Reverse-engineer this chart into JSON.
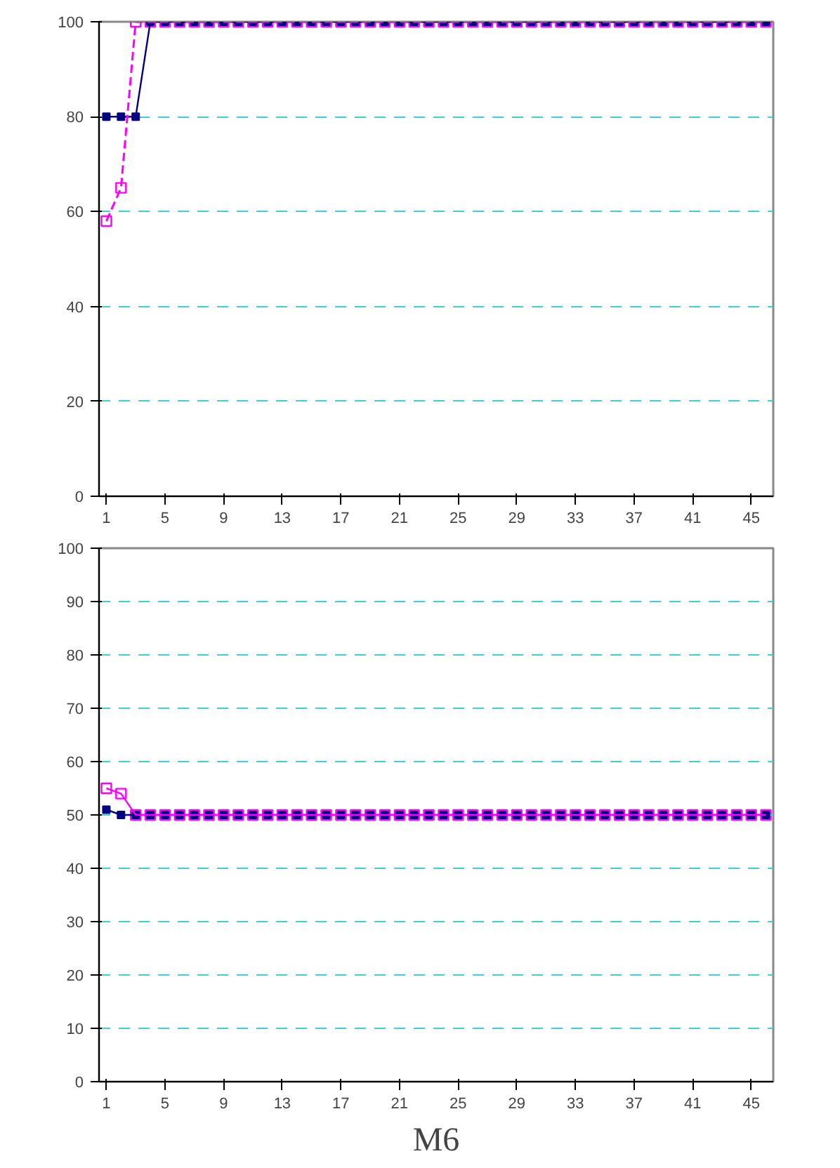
{
  "chart_data": [
    {
      "type": "line",
      "x": [
        1,
        2,
        3,
        4,
        5,
        6,
        7,
        8,
        9,
        10,
        11,
        12,
        13,
        14,
        15,
        16,
        17,
        18,
        19,
        20,
        21,
        22,
        23,
        24,
        25,
        26,
        27,
        28,
        29,
        30,
        31,
        32,
        33,
        34,
        35,
        36,
        37,
        38,
        39,
        40,
        41,
        42,
        43,
        44,
        45,
        46
      ],
      "xlim": [
        0.5,
        46.5
      ],
      "xticks": [
        1,
        5,
        9,
        13,
        17,
        21,
        25,
        29,
        33,
        37,
        41,
        45
      ],
      "ylim": [
        0,
        100
      ],
      "yticks": [
        0,
        20,
        40,
        60,
        80,
        100
      ],
      "grid": "y",
      "marker": "square",
      "series": [
        {
          "color": "#000080",
          "line_style": "solid",
          "values": [
            80,
            80,
            80,
            100,
            100,
            100,
            100,
            100,
            100,
            100,
            100,
            100,
            100,
            100,
            100,
            100,
            100,
            100,
            100,
            100,
            100,
            100,
            100,
            100,
            100,
            100,
            100,
            100,
            100,
            100,
            100,
            100,
            100,
            100,
            100,
            100,
            100,
            100,
            100,
            100,
            100,
            100,
            100,
            100,
            100,
            100
          ]
        },
        {
          "color": "#ff00ff",
          "line_style": "dashed",
          "values": [
            58,
            65,
            100,
            100,
            100,
            100,
            100,
            100,
            100,
            100,
            100,
            100,
            100,
            100,
            100,
            100,
            100,
            100,
            100,
            100,
            100,
            100,
            100,
            100,
            100,
            100,
            100,
            100,
            100,
            100,
            100,
            100,
            100,
            100,
            100,
            100,
            100,
            100,
            100,
            100,
            100,
            100,
            100,
            100,
            100,
            100
          ]
        }
      ]
    },
    {
      "type": "line",
      "title": "M6",
      "x": [
        1,
        2,
        3,
        4,
        5,
        6,
        7,
        8,
        9,
        10,
        11,
        12,
        13,
        14,
        15,
        16,
        17,
        18,
        19,
        20,
        21,
        22,
        23,
        24,
        25,
        26,
        27,
        28,
        29,
        30,
        31,
        32,
        33,
        34,
        35,
        36,
        37,
        38,
        39,
        40,
        41,
        42,
        43,
        44,
        45,
        46
      ],
      "xlim": [
        0.5,
        46.5
      ],
      "xticks": [
        1,
        5,
        9,
        13,
        17,
        21,
        25,
        29,
        33,
        37,
        41,
        45
      ],
      "ylim": [
        0,
        100
      ],
      "yticks": [
        0,
        10,
        20,
        30,
        40,
        50,
        60,
        70,
        80,
        90,
        100
      ],
      "grid": "y",
      "marker": "square",
      "series": [
        {
          "color": "#000080",
          "line_style": "solid",
          "values": [
            51,
            50,
            50,
            50,
            50,
            50,
            50,
            50,
            50,
            50,
            50,
            50,
            50,
            50,
            50,
            50,
            50,
            50,
            50,
            50,
            50,
            50,
            50,
            50,
            50,
            50,
            50,
            50,
            50,
            50,
            50,
            50,
            50,
            50,
            50,
            50,
            50,
            50,
            50,
            50,
            50,
            50,
            50,
            50,
            50,
            50
          ]
        },
        {
          "color": "#ff00ff",
          "line_style": "solid",
          "values": [
            55,
            54,
            50,
            50,
            50,
            50,
            50,
            50,
            50,
            50,
            50,
            50,
            50,
            50,
            50,
            50,
            50,
            50,
            50,
            50,
            50,
            50,
            50,
            50,
            50,
            50,
            50,
            50,
            50,
            50,
            50,
            50,
            50,
            50,
            50,
            50,
            50,
            50,
            50,
            50,
            50,
            50,
            50,
            50,
            50,
            50
          ]
        }
      ]
    }
  ]
}
